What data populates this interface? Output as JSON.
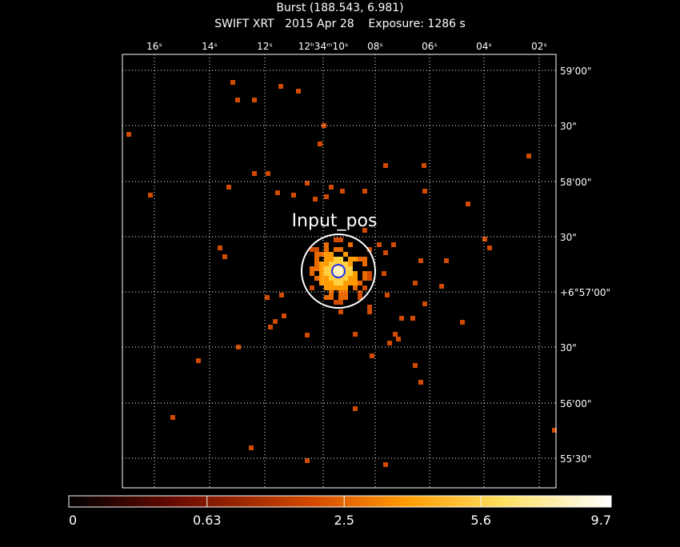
{
  "header": {
    "title": "Burst (188.543, 6.981)",
    "subtitle": "SWIFT XRT   2015 Apr 28    Exposure: 1286 s"
  },
  "ra_labels": [
    "16ˢ",
    "14ˢ",
    "12ˢ",
    "12ʰ34ᵐ10ˢ",
    "08ˢ",
    "06ˢ",
    "04ˢ",
    "02ˢ"
  ],
  "dec_labels": [
    "59'00\"",
    "30\"",
    "58'00\"",
    "30\"",
    "+6°57'00\"",
    "30\"",
    "56'00\"",
    "55'30\""
  ],
  "annotation": "Input_pos",
  "colorbar": {
    "clim": [
      0,
      9.7
    ],
    "scale": "sqrt",
    "ticks": [
      0,
      0.63,
      2.5,
      5.6,
      9.7
    ]
  }
}
